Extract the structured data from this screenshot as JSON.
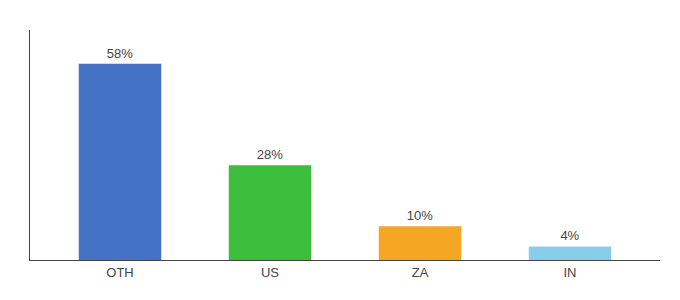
{
  "chart_data": {
    "type": "bar",
    "categories": [
      "OTH",
      "US",
      "ZA",
      "IN"
    ],
    "values": [
      58,
      28,
      10,
      4
    ],
    "value_labels": [
      "58%",
      "28%",
      "10%",
      "4%"
    ],
    "colors": [
      "#4472c4",
      "#3dbf3d",
      "#f5a623",
      "#87ceeb"
    ],
    "ylim": [
      0,
      68
    ],
    "data_labels": true,
    "tick_labels": "x",
    "grid": false
  }
}
